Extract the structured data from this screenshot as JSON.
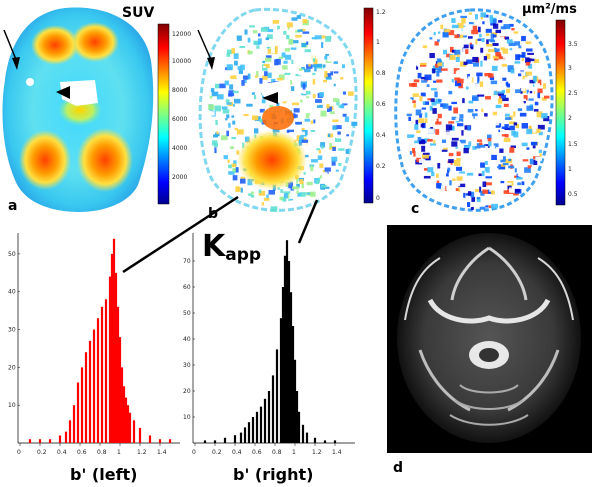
{
  "panels": {
    "a": "a",
    "b": "b",
    "c": "c",
    "d": "d"
  },
  "units": {
    "suv": "SUV",
    "dk": "μm²/ms"
  },
  "kapp": {
    "main": "K",
    "sub": "app"
  },
  "colorbar_a": {
    "ticks": [
      "12000",
      "10000",
      "8000",
      "6000",
      "4000",
      "2000"
    ]
  },
  "colorbar_b": {
    "ticks": [
      "1.2",
      "1",
      "0.8",
      "0.6",
      "0.4",
      "0.2",
      "0"
    ]
  },
  "colorbar_c": {
    "ticks": [
      "3.5",
      "3",
      "2.5",
      "2",
      "1.5",
      "1",
      "0.5"
    ]
  },
  "colors": {
    "left_hist": "#ff0000",
    "right_hist": "#000000"
  },
  "chart_data": [
    {
      "type": "bar",
      "xlabel": "b' (left)",
      "xlim": [
        0,
        1.6
      ],
      "ylim": [
        0,
        55
      ],
      "x_ticks": [
        "0",
        "0.2",
        "0.4",
        "0.6",
        "0.8",
        "1",
        "1.2",
        "1.4"
      ],
      "y_ticks": [
        "10",
        "20",
        "30",
        "40",
        "50"
      ],
      "bins_x": [
        0.1,
        0.2,
        0.3,
        0.4,
        0.46,
        0.5,
        0.54,
        0.58,
        0.62,
        0.66,
        0.7,
        0.74,
        0.78,
        0.82,
        0.86,
        0.9,
        0.92,
        0.94,
        0.96,
        0.98,
        1.0,
        1.02,
        1.04,
        1.06,
        1.08,
        1.1,
        1.14,
        1.2,
        1.3,
        1.4,
        1.5
      ],
      "bins_y": [
        1,
        1,
        1,
        2,
        3,
        6,
        10,
        16,
        20,
        24,
        27,
        30,
        33,
        36,
        38,
        44,
        50,
        54,
        45,
        36,
        28,
        20,
        15,
        12,
        10,
        8,
        6,
        4,
        2,
        1,
        1
      ]
    },
    {
      "type": "bar",
      "xlabel": "b' (right)",
      "xlim": [
        0,
        1.6
      ],
      "ylim": [
        0,
        80
      ],
      "x_ticks": [
        "0",
        "0.2",
        "0.4",
        "0.6",
        "0.8",
        "1",
        "1.2",
        "1.4"
      ],
      "y_ticks": [
        "10",
        "20",
        "30",
        "40",
        "50",
        "60",
        "70"
      ],
      "bins_x": [
        0.1,
        0.2,
        0.3,
        0.4,
        0.46,
        0.5,
        0.54,
        0.58,
        0.62,
        0.66,
        0.7,
        0.74,
        0.78,
        0.82,
        0.86,
        0.88,
        0.9,
        0.92,
        0.94,
        0.96,
        0.98,
        1.0,
        1.02,
        1.04,
        1.08,
        1.12,
        1.2,
        1.3,
        1.4
      ],
      "bins_y": [
        1,
        1,
        2,
        3,
        4,
        6,
        8,
        10,
        12,
        14,
        17,
        20,
        26,
        36,
        48,
        60,
        72,
        78,
        70,
        58,
        45,
        32,
        20,
        12,
        7,
        4,
        2,
        1,
        1
      ]
    }
  ]
}
